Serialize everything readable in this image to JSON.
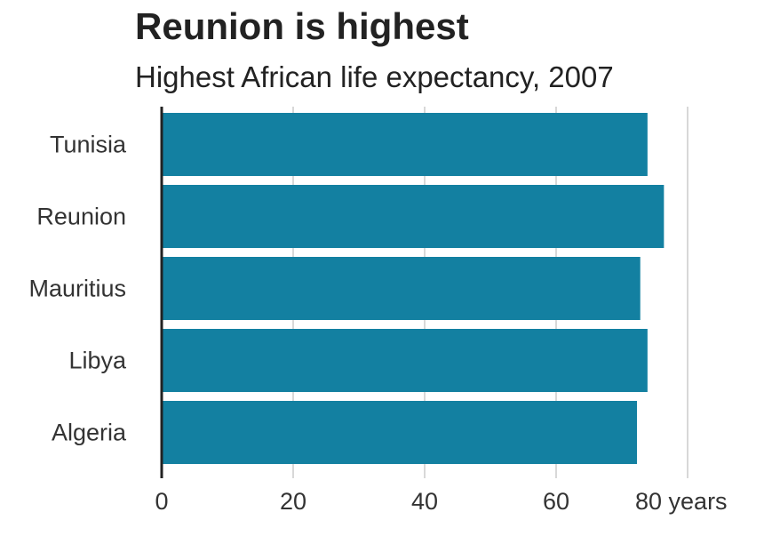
{
  "chart_data": {
    "type": "bar",
    "orientation": "horizontal",
    "title": "Reunion is highest",
    "subtitle": "Highest African life expectancy, 2007",
    "categories": [
      "Tunisia",
      "Reunion",
      "Mauritius",
      "Libya",
      "Algeria"
    ],
    "values": [
      73.9,
      76.4,
      72.8,
      73.9,
      72.3
    ],
    "xlim": [
      0,
      80
    ],
    "x_ticks": [
      0,
      20,
      40,
      60,
      80
    ],
    "x_tick_labels": [
      "0",
      "20",
      "40",
      "60",
      "80 years"
    ],
    "xlabel": "",
    "ylabel": "",
    "grid": true,
    "bar_color": "#1380A1",
    "grid_color": "#cbcbcb",
    "axis_color": "#222222"
  }
}
